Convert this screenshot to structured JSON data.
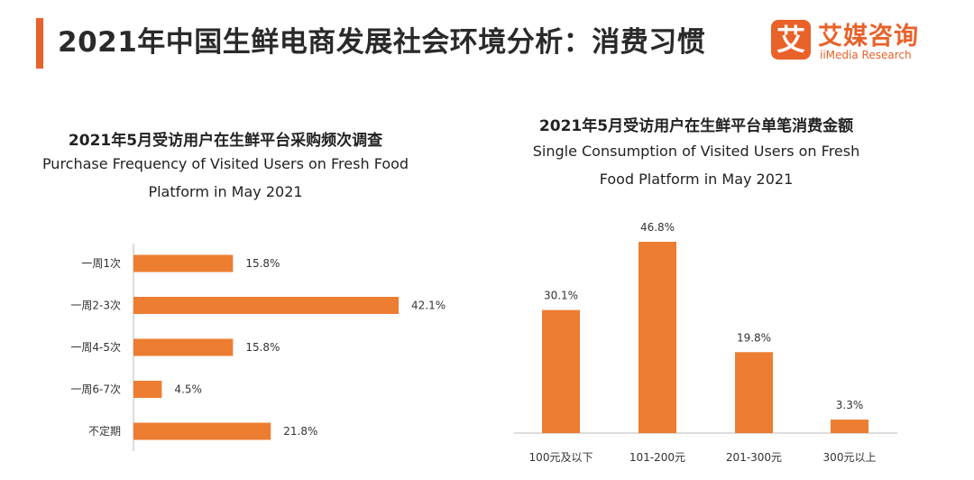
{
  "header": {
    "title": "2021年中国生鲜电商发展社会环境分析：消费习惯",
    "accent_color": "#E8622A",
    "logo": {
      "mark": "艾",
      "cn": "艾媒咨询",
      "en": "iiMedia Research",
      "color": "#E8622A"
    }
  },
  "bar_color": "#ED7D31",
  "chart_data": [
    {
      "type": "bar",
      "orientation": "horizontal",
      "title": "2021年5月受访用户在生鲜平台采购频次调查",
      "subtitle": "Purchase Frequency of Visited Users on Fresh Food Platform in May 2021",
      "categories": [
        "一周1次",
        "一周2-3次",
        "一周4-5次",
        "一周6-7次",
        "不定期"
      ],
      "values": [
        15.8,
        42.1,
        15.8,
        4.5,
        21.8
      ],
      "labels": [
        "15.8%",
        "42.1%",
        "15.8%",
        "4.5%",
        "21.8%"
      ],
      "xlim": [
        0,
        45
      ],
      "grid": false,
      "legend": "none"
    },
    {
      "type": "bar",
      "orientation": "vertical",
      "title": "2021年5月受访用户在生鲜平台单笔消费金额",
      "subtitle": "Single Consumption of Visited Users on Fresh Food Platform in May 2021",
      "categories": [
        "100元及以下",
        "101-200元",
        "201-300元",
        "300元以上"
      ],
      "values": [
        30.1,
        46.8,
        19.8,
        3.3
      ],
      "labels": [
        "30.1%",
        "46.8%",
        "19.8%",
        "3.3%"
      ],
      "ylim": [
        0,
        50
      ],
      "grid": false,
      "legend": "none"
    }
  ]
}
